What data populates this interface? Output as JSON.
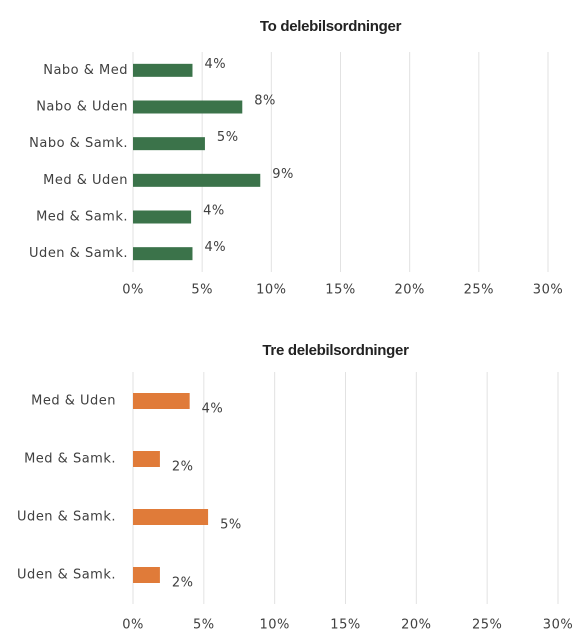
{
  "chart_data": [
    {
      "type": "barh",
      "title": "To delebilsordninger",
      "categories": [
        "Nabo & Med",
        "Nabo & Uden",
        "Nabo & Samk.",
        "Med & Uden",
        "Med & Samk.",
        "Uden & Samk."
      ],
      "values": [
        4.3,
        7.9,
        5.2,
        9.2,
        4.2,
        4.3
      ],
      "value_labels": [
        "4%",
        "8%",
        "5%",
        "9%",
        "4%",
        "4%"
      ],
      "color": "#3b734a",
      "xlim": [
        0,
        30
      ],
      "xticks": [
        {
          "value": 0,
          "label": "0%"
        },
        {
          "value": 5,
          "label": "5%"
        },
        {
          "value": 10,
          "label": "10%"
        },
        {
          "value": 15,
          "label": "15%"
        },
        {
          "value": 20,
          "label": "20%"
        },
        {
          "value": 25,
          "label": "25%"
        },
        {
          "value": 30,
          "label": "30%"
        }
      ],
      "grid": true
    },
    {
      "type": "barh",
      "title": "Tre delebilsordninger",
      "categories": [
        "Med & Uden",
        "Med & Samk.",
        "Uden & Samk.",
        "Uden & Samk."
      ],
      "values": [
        4.0,
        1.9,
        5.3,
        1.9
      ],
      "value_labels": [
        "4%",
        "2%",
        "5%",
        "2%"
      ],
      "color": "#e07b39",
      "xlim": [
        0,
        30
      ],
      "xticks": [
        {
          "value": 0,
          "label": "0%"
        },
        {
          "value": 5,
          "label": "5%"
        },
        {
          "value": 10,
          "label": "10%"
        },
        {
          "value": 15,
          "label": "15%"
        },
        {
          "value": 20,
          "label": "20%"
        },
        {
          "value": 25,
          "label": "25%"
        },
        {
          "value": 30,
          "label": "30%"
        }
      ],
      "grid": true
    }
  ]
}
